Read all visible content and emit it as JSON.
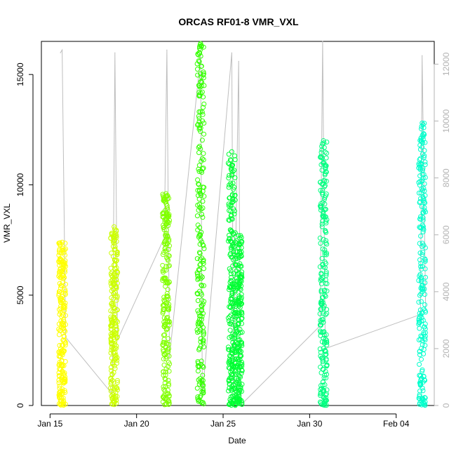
{
  "chart_data": {
    "type": "scatter",
    "title": "ORCAS RF01-8 VMR_VXL",
    "xlabel": "Date",
    "ylabel": "VMR_VXL",
    "x_ticks": [
      "Jan 15",
      "Jan 20",
      "Jan 25",
      "Jan 30",
      "Feb 04"
    ],
    "x_tick_days": [
      0,
      5,
      10,
      15,
      20
    ],
    "xlim_days": [
      -0.5,
      22.2
    ],
    "y_ticks": [
      0,
      5000,
      10000,
      15000
    ],
    "ylim": [
      0,
      16500
    ],
    "y2_ticks": [
      0,
      2000,
      4000,
      6000,
      8000,
      10000,
      12000
    ],
    "y2lim": [
      0,
      12800
    ],
    "grid": false,
    "legend": "none",
    "colors": {
      "scatter": [
        "#ffff00",
        "#ccff00",
        "#80ff00",
        "#33ff00",
        "#00ff33",
        "#00ff80",
        "#00ffcc"
      ],
      "line": "#bebebe",
      "axis": "#000000",
      "axis2": "#b3b3b3"
    },
    "flights": [
      {
        "day": 0.7,
        "ymax": 7400,
        "color": "#ffff00"
      },
      {
        "day": 3.7,
        "ymax": 8100,
        "color": "#ccff00"
      },
      {
        "day": 6.7,
        "ymax": 9600,
        "color": "#80ff00"
      },
      {
        "day": 8.7,
        "ymax": 16400,
        "color": "#33ff00"
      },
      {
        "day": 10.5,
        "ymax": 11500,
        "color": "#00ff33"
      },
      {
        "day": 10.9,
        "ymax": 7700,
        "color": "#00ff33"
      },
      {
        "day": 15.8,
        "ymax": 12000,
        "color": "#00ff80"
      },
      {
        "day": 21.5,
        "ymax": 12800,
        "color": "#00ffcc"
      }
    ],
    "secondary_series": [
      {
        "day": 0.6,
        "y2": 12400
      },
      {
        "day": 0.7,
        "y2": 12500
      },
      {
        "day": 0.9,
        "y2": 2400
      },
      {
        "day": 3.6,
        "y2": 400
      },
      {
        "day": 3.75,
        "y2": 12400
      },
      {
        "day": 3.9,
        "y2": 2300
      },
      {
        "day": 6.6,
        "y2": 5900
      },
      {
        "day": 6.75,
        "y2": 12500
      },
      {
        "day": 6.9,
        "y2": 1700
      },
      {
        "day": 8.7,
        "y2": 12300
      },
      {
        "day": 8.8,
        "y2": 300
      },
      {
        "day": 10.5,
        "y2": 12400
      },
      {
        "day": 10.6,
        "y2": 600
      },
      {
        "day": 10.9,
        "y2": 12100
      },
      {
        "day": 11.0,
        "y2": 0
      },
      {
        "day": 15.6,
        "y2": 2800
      },
      {
        "day": 15.75,
        "y2": 12800
      },
      {
        "day": 15.9,
        "y2": 2000
      },
      {
        "day": 21.4,
        "y2": 3200
      },
      {
        "day": 21.5,
        "y2": 12300
      },
      {
        "day": 21.7,
        "y2": 3400
      }
    ]
  }
}
